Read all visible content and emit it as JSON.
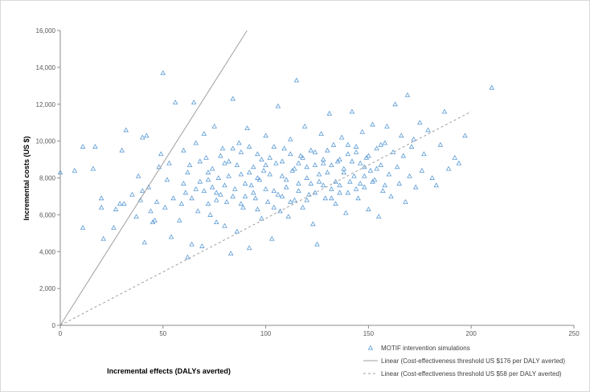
{
  "chart_data": {
    "type": "scatter",
    "xlabel": "Incremental effects (DALYs averted)",
    "ylabel": "Incremental costs (US $)",
    "xlim": [
      0,
      250
    ],
    "ylim": [
      0,
      16000
    ],
    "x_ticks": [
      "0",
      "50",
      "100",
      "150",
      "200",
      "250"
    ],
    "y_ticks": [
      "0",
      "2,000",
      "4,000",
      "6,000",
      "8,000",
      "10,000",
      "12,000",
      "14,000",
      "16,000"
    ],
    "grid": false,
    "legend_position": "bottom-right",
    "series": [
      {
        "name": "MOTIF intervention simulations",
        "marker": "triangle-open",
        "color": "#5b9bd5",
        "points": [
          [
            0,
            8300
          ],
          [
            7,
            8400
          ],
          [
            11,
            9700
          ],
          [
            11,
            5300
          ],
          [
            16,
            8500
          ],
          [
            17,
            9700
          ],
          [
            20,
            6400
          ],
          [
            20,
            6900
          ],
          [
            21,
            4700
          ],
          [
            26,
            5300
          ],
          [
            27,
            6300
          ],
          [
            29,
            6600
          ],
          [
            30,
            9500
          ],
          [
            31,
            6600
          ],
          [
            32,
            10600
          ],
          [
            35,
            7100
          ],
          [
            37,
            5900
          ],
          [
            38,
            8100
          ],
          [
            39,
            6800
          ],
          [
            40,
            7300
          ],
          [
            40,
            10200
          ],
          [
            41,
            4500
          ],
          [
            42,
            10300
          ],
          [
            43,
            7500
          ],
          [
            44,
            6200
          ],
          [
            45,
            5600
          ],
          [
            46,
            5700
          ],
          [
            47,
            6700
          ],
          [
            48,
            8600
          ],
          [
            49,
            9300
          ],
          [
            50,
            13700
          ],
          [
            51,
            6400
          ],
          [
            52,
            7900
          ],
          [
            53,
            8800
          ],
          [
            54,
            4800
          ],
          [
            55,
            6900
          ],
          [
            56,
            12100
          ],
          [
            58,
            5700
          ],
          [
            59,
            6600
          ],
          [
            60,
            9500
          ],
          [
            61,
            7200
          ],
          [
            62,
            3700
          ],
          [
            63,
            8700
          ],
          [
            64,
            4400
          ],
          [
            65,
            12100
          ],
          [
            66,
            9900
          ],
          [
            67,
            6200
          ],
          [
            68,
            7800
          ],
          [
            69,
            4300
          ],
          [
            70,
            10400
          ],
          [
            71,
            9100
          ],
          [
            72,
            8300
          ],
          [
            73,
            6000
          ],
          [
            74,
            7500
          ],
          [
            75,
            10800
          ],
          [
            76,
            5600
          ],
          [
            77,
            8000
          ],
          [
            78,
            7100
          ],
          [
            79,
            9600
          ],
          [
            80,
            5400
          ],
          [
            81,
            6700
          ],
          [
            82,
            8900
          ],
          [
            83,
            3900
          ],
          [
            84,
            12300
          ],
          [
            85,
            7400
          ],
          [
            86,
            5100
          ],
          [
            87,
            9900
          ],
          [
            88,
            8200
          ],
          [
            89,
            6400
          ],
          [
            90,
            7000
          ],
          [
            91,
            10700
          ],
          [
            92,
            4200
          ],
          [
            93,
            7600
          ],
          [
            94,
            8600
          ],
          [
            95,
            6900
          ],
          [
            96,
            9300
          ],
          [
            97,
            7900
          ],
          [
            98,
            5800
          ],
          [
            99,
            8400
          ],
          [
            100,
            10300
          ],
          [
            101,
            6700
          ],
          [
            102,
            9100
          ],
          [
            103,
            4700
          ],
          [
            104,
            7300
          ],
          [
            105,
            8800
          ],
          [
            106,
            11900
          ],
          [
            107,
            6200
          ],
          [
            108,
            8100
          ],
          [
            109,
            9600
          ],
          [
            110,
            7500
          ],
          [
            111,
            5900
          ],
          [
            112,
            10100
          ],
          [
            113,
            8400
          ],
          [
            114,
            6800
          ],
          [
            115,
            13300
          ],
          [
            116,
            7700
          ],
          [
            117,
            9200
          ],
          [
            118,
            6400
          ],
          [
            119,
            10800
          ],
          [
            120,
            8000
          ],
          [
            121,
            7100
          ],
          [
            122,
            9500
          ],
          [
            123,
            5500
          ],
          [
            124,
            8700
          ],
          [
            125,
            4400
          ],
          [
            126,
            7800
          ],
          [
            127,
            10400
          ],
          [
            128,
            9000
          ],
          [
            129,
            6900
          ],
          [
            130,
            8300
          ],
          [
            131,
            11500
          ],
          [
            132,
            7400
          ],
          [
            133,
            9800
          ],
          [
            134,
            6600
          ],
          [
            135,
            8900
          ],
          [
            136,
            7200
          ],
          [
            137,
            10200
          ],
          [
            138,
            8500
          ],
          [
            139,
            6100
          ],
          [
            140,
            9300
          ],
          [
            141,
            7800
          ],
          [
            142,
            11600
          ],
          [
            143,
            8100
          ],
          [
            144,
            9700
          ],
          [
            145,
            6900
          ],
          [
            146,
            8800
          ],
          [
            147,
            10500
          ],
          [
            148,
            7500
          ],
          [
            149,
            9100
          ],
          [
            150,
            6300
          ],
          [
            151,
            8400
          ],
          [
            152,
            10900
          ],
          [
            153,
            7900
          ],
          [
            154,
            9600
          ],
          [
            155,
            5900
          ],
          [
            156,
            8700
          ],
          [
            157,
            7300
          ],
          [
            158,
            9900
          ],
          [
            159,
            10800
          ],
          [
            160,
            8200
          ],
          [
            161,
            7000
          ],
          [
            162,
            9400
          ],
          [
            163,
            12000
          ],
          [
            164,
            8600
          ],
          [
            165,
            7700
          ],
          [
            166,
            10300
          ],
          [
            167,
            9200
          ],
          [
            168,
            6700
          ],
          [
            169,
            12500
          ],
          [
            170,
            8100
          ],
          [
            171,
            9700
          ],
          [
            172,
            10100
          ],
          [
            173,
            7500
          ],
          [
            175,
            11000
          ],
          [
            176,
            8400
          ],
          [
            177,
            9300
          ],
          [
            179,
            10600
          ],
          [
            181,
            8000
          ],
          [
            183,
            7600
          ],
          [
            185,
            9800
          ],
          [
            187,
            11600
          ],
          [
            189,
            8500
          ],
          [
            192,
            9100
          ],
          [
            194,
            8800
          ],
          [
            197,
            10300
          ],
          [
            210,
            12900
          ],
          [
            60,
            7700
          ],
          [
            62,
            8300
          ],
          [
            64,
            6900
          ],
          [
            66,
            7400
          ],
          [
            68,
            8900
          ],
          [
            70,
            7300
          ],
          [
            72,
            7900
          ],
          [
            74,
            8500
          ],
          [
            76,
            6800
          ],
          [
            78,
            9200
          ],
          [
            80,
            7600
          ],
          [
            82,
            8100
          ],
          [
            84,
            7000
          ],
          [
            86,
            8700
          ],
          [
            88,
            9400
          ],
          [
            90,
            7700
          ],
          [
            92,
            8300
          ],
          [
            94,
            7200
          ],
          [
            96,
            8000
          ],
          [
            98,
            9000
          ],
          [
            100,
            7400
          ],
          [
            102,
            8200
          ],
          [
            104,
            9700
          ],
          [
            106,
            7100
          ],
          [
            108,
            8900
          ],
          [
            110,
            7900
          ],
          [
            112,
            9300
          ],
          [
            114,
            8500
          ],
          [
            116,
            7300
          ],
          [
            118,
            9100
          ],
          [
            120,
            8600
          ],
          [
            122,
            7700
          ],
          [
            124,
            9400
          ],
          [
            126,
            8200
          ],
          [
            128,
            7600
          ],
          [
            130,
            9500
          ],
          [
            132,
            8700
          ],
          [
            134,
            7800
          ],
          [
            136,
            9000
          ],
          [
            138,
            8300
          ],
          [
            140,
            7200
          ],
          [
            142,
            8900
          ],
          [
            144,
            9400
          ],
          [
            146,
            7700
          ],
          [
            148,
            8600
          ],
          [
            150,
            9200
          ],
          [
            152,
            7800
          ],
          [
            154,
            8500
          ],
          [
            156,
            9800
          ],
          [
            158,
            7600
          ],
          [
            72,
            6600
          ],
          [
            76,
            7200
          ],
          [
            80,
            8800
          ],
          [
            84,
            9600
          ],
          [
            88,
            6600
          ],
          [
            92,
            9700
          ],
          [
            96,
            6300
          ],
          [
            100,
            8700
          ],
          [
            104,
            6400
          ],
          [
            108,
            7000
          ],
          [
            112,
            6700
          ],
          [
            116,
            8800
          ],
          [
            120,
            6800
          ],
          [
            124,
            7200
          ],
          [
            128,
            8800
          ],
          [
            132,
            6900
          ],
          [
            136,
            7600
          ],
          [
            140,
            9800
          ],
          [
            144,
            7400
          ],
          [
            148,
            8100
          ]
        ]
      }
    ],
    "lines": [
      {
        "name": "Linear (Cost-effectiveness threshold US $176 per DALY averted)",
        "slope": 176,
        "style": "solid",
        "color": "#9f9f9f",
        "x_range": [
          0,
          90.9
        ]
      },
      {
        "name": "Linear (Cost-effectiveness threshold US $58 per DALY averted)",
        "slope": 58,
        "style": "dashed",
        "color": "#9f9f9f",
        "x_range": [
          0,
          200
        ]
      }
    ]
  }
}
